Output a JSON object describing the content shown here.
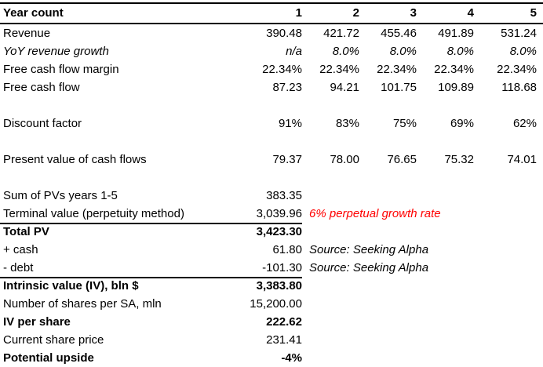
{
  "colors": {
    "text": "#000000",
    "background": "#ffffff",
    "border": "#000000",
    "note_red": "#ff0000"
  },
  "header": {
    "label": "Year count",
    "columns": [
      "1",
      "2",
      "3",
      "4",
      "5"
    ]
  },
  "rows": [
    {
      "label": "Revenue",
      "values": [
        "390.48",
        "421.72",
        "455.46",
        "491.89",
        "531.24"
      ]
    },
    {
      "label": "YoY revenue growth",
      "italic": true,
      "values": [
        "n/a",
        "8.0%",
        "8.0%",
        "8.0%",
        "8.0%"
      ]
    },
    {
      "label": "Free cash flow margin",
      "values": [
        "22.34%",
        "22.34%",
        "22.34%",
        "22.34%",
        "22.34%"
      ]
    },
    {
      "label": "Free cash flow",
      "values": [
        "87.23",
        "94.21",
        "101.75",
        "109.89",
        "118.68"
      ]
    },
    {
      "blank": true
    },
    {
      "label": "Discount factor",
      "values": [
        "91%",
        "83%",
        "75%",
        "69%",
        "62%"
      ]
    },
    {
      "blank": true
    },
    {
      "label": "Present value of cash flows",
      "values": [
        "79.37",
        "78.00",
        "76.65",
        "75.32",
        "74.01"
      ]
    },
    {
      "blank": true
    },
    {
      "label": "Sum of PVs years 1-5",
      "value": "383.35"
    },
    {
      "label": "Terminal value (perpetuity method)",
      "value": "3,039.96",
      "note": "6% perpetual growth rate",
      "note_color": "#ff0000",
      "rule_below": true
    },
    {
      "label": "Total PV",
      "value": "3,423.30",
      "bold": true
    },
    {
      "label": "+ cash",
      "value": "61.80",
      "note": "Source: Seeking Alpha"
    },
    {
      "label": "- debt",
      "value": "-101.30",
      "note": "Source: Seeking Alpha",
      "rule_below": true
    },
    {
      "label": "Intrinsic value (IV), bln $",
      "value": "3,383.80",
      "bold": true
    },
    {
      "label": "Number of shares per SA, mln",
      "value": "15,200.00"
    },
    {
      "label": "IV per share",
      "value": "222.62",
      "bold": true
    },
    {
      "label": "Current share price",
      "value": "231.41"
    },
    {
      "label": "Potential upside",
      "value": "-4%",
      "bold": true
    }
  ]
}
